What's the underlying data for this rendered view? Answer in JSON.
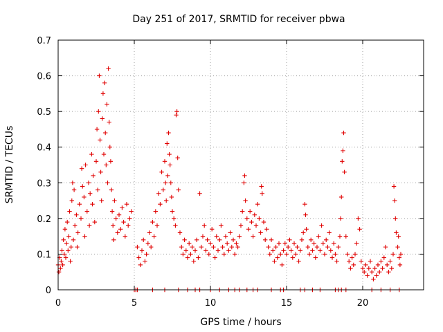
{
  "chart_data": {
    "type": "scatter",
    "title": "Day 251 of 2017, SRMTID for receiver pbwa",
    "xlabel": "GPS time / hours",
    "ylabel": "SRMTID / TECUs",
    "xlim": [
      0,
      24
    ],
    "ylim": [
      0,
      0.7
    ],
    "x_ticks": [
      0,
      5,
      10,
      15,
      20
    ],
    "x_tick_labels": [
      "0",
      "5",
      "10",
      "15",
      "20"
    ],
    "y_ticks": [
      0,
      0.1,
      0.2,
      0.3,
      0.4,
      0.5,
      0.6,
      0.7
    ],
    "y_tick_labels": [
      "0",
      "0.1",
      "0.2",
      "0.3",
      "0.4",
      "0.5",
      "0.6",
      "0.7"
    ],
    "grid": true,
    "marker": "plus",
    "color": "#e00000",
    "series": [
      {
        "name": "SRMTID",
        "points": [
          [
            0.0,
            0.07
          ],
          [
            0.05,
            0.05
          ],
          [
            0.1,
            0.09
          ],
          [
            0.15,
            0.06
          ],
          [
            0.2,
            0.08
          ],
          [
            0.25,
            0.11
          ],
          [
            0.3,
            0.07
          ],
          [
            0.35,
            0.14
          ],
          [
            0.4,
            0.1
          ],
          [
            0.45,
            0.17
          ],
          [
            0.5,
            0.09
          ],
          [
            0.55,
            0.13
          ],
          [
            0.6,
            0.19
          ],
          [
            0.65,
            0.11
          ],
          [
            0.7,
            0.15
          ],
          [
            0.75,
            0.22
          ],
          [
            0.8,
            0.08
          ],
          [
            0.85,
            0.12
          ],
          [
            0.9,
            0.25
          ],
          [
            0.95,
            0.3
          ],
          [
            1.0,
            0.14
          ],
          [
            1.05,
            0.28
          ],
          [
            1.1,
            0.18
          ],
          [
            1.2,
            0.21
          ],
          [
            1.25,
            0.12
          ],
          [
            1.3,
            0.16
          ],
          [
            1.4,
            0.24
          ],
          [
            1.5,
            0.2
          ],
          [
            1.55,
            0.34
          ],
          [
            1.6,
            0.29
          ],
          [
            1.7,
            0.26
          ],
          [
            1.75,
            0.15
          ],
          [
            1.8,
            0.35
          ],
          [
            1.9,
            0.22
          ],
          [
            2.0,
            0.3
          ],
          [
            2.05,
            0.18
          ],
          [
            2.1,
            0.27
          ],
          [
            2.2,
            0.38
          ],
          [
            2.25,
            0.24
          ],
          [
            2.3,
            0.32
          ],
          [
            2.4,
            0.19
          ],
          [
            2.5,
            0.36
          ],
          [
            2.55,
            0.45
          ],
          [
            2.6,
            0.28
          ],
          [
            2.65,
            0.5
          ],
          [
            2.7,
            0.6
          ],
          [
            2.75,
            0.42
          ],
          [
            2.8,
            0.33
          ],
          [
            2.85,
            0.25
          ],
          [
            2.9,
            0.48
          ],
          [
            2.95,
            0.55
          ],
          [
            3.0,
            0.38
          ],
          [
            3.05,
            0.58
          ],
          [
            3.1,
            0.44
          ],
          [
            3.15,
            0.35
          ],
          [
            3.2,
            0.52
          ],
          [
            3.25,
            0.3
          ],
          [
            3.3,
            0.62
          ],
          [
            3.35,
            0.47
          ],
          [
            3.4,
            0.4
          ],
          [
            3.45,
            0.36
          ],
          [
            3.5,
            0.28
          ],
          [
            3.55,
            0.22
          ],
          [
            3.6,
            0.18
          ],
          [
            3.65,
            0.14
          ],
          [
            3.7,
            0.25
          ],
          [
            3.8,
            0.2
          ],
          [
            3.9,
            0.16
          ],
          [
            4.0,
            0.21
          ],
          [
            4.1,
            0.17
          ],
          [
            4.2,
            0.23
          ],
          [
            4.3,
            0.19
          ],
          [
            4.4,
            0.15
          ],
          [
            4.5,
            0.24
          ],
          [
            4.6,
            0.18
          ],
          [
            4.7,
            0.2
          ],
          [
            4.8,
            0.22
          ],
          [
            5.2,
            0.12
          ],
          [
            5.3,
            0.09
          ],
          [
            5.4,
            0.07
          ],
          [
            5.5,
            0.11
          ],
          [
            5.6,
            0.14
          ],
          [
            5.7,
            0.08
          ],
          [
            5.8,
            0.1
          ],
          [
            5.9,
            0.13
          ],
          [
            6.0,
            0.16
          ],
          [
            6.1,
            0.12
          ],
          [
            6.2,
            0.19
          ],
          [
            6.3,
            0.15
          ],
          [
            6.4,
            0.22
          ],
          [
            6.5,
            0.18
          ],
          [
            6.6,
            0.27
          ],
          [
            6.7,
            0.24
          ],
          [
            6.8,
            0.33
          ],
          [
            6.9,
            0.28
          ],
          [
            7.0,
            0.36
          ],
          [
            7.05,
            0.3
          ],
          [
            7.1,
            0.25
          ],
          [
            7.15,
            0.41
          ],
          [
            7.2,
            0.32
          ],
          [
            7.25,
            0.44
          ],
          [
            7.3,
            0.38
          ],
          [
            7.35,
            0.35
          ],
          [
            7.4,
            0.3
          ],
          [
            7.45,
            0.26
          ],
          [
            7.5,
            0.22
          ],
          [
            7.6,
            0.2
          ],
          [
            7.7,
            0.18
          ],
          [
            7.75,
            0.49
          ],
          [
            7.8,
            0.5
          ],
          [
            7.85,
            0.37
          ],
          [
            7.9,
            0.28
          ],
          [
            8.0,
            0.16
          ],
          [
            8.1,
            0.12
          ],
          [
            8.2,
            0.1
          ],
          [
            8.3,
            0.14
          ],
          [
            8.4,
            0.11
          ],
          [
            8.5,
            0.09
          ],
          [
            8.6,
            0.13
          ],
          [
            8.7,
            0.1
          ],
          [
            8.8,
            0.12
          ],
          [
            8.9,
            0.08
          ],
          [
            9.0,
            0.11
          ],
          [
            9.1,
            0.14
          ],
          [
            9.2,
            0.09
          ],
          [
            9.3,
            0.27
          ],
          [
            9.4,
            0.12
          ],
          [
            9.5,
            0.15
          ],
          [
            9.6,
            0.18
          ],
          [
            9.7,
            0.11
          ],
          [
            9.8,
            0.14
          ],
          [
            9.9,
            0.1
          ],
          [
            10.0,
            0.13
          ],
          [
            10.1,
            0.17
          ],
          [
            10.2,
            0.12
          ],
          [
            10.3,
            0.09
          ],
          [
            10.4,
            0.15
          ],
          [
            10.5,
            0.11
          ],
          [
            10.6,
            0.14
          ],
          [
            10.7,
            0.18
          ],
          [
            10.8,
            0.12
          ],
          [
            10.9,
            0.1
          ],
          [
            11.0,
            0.15
          ],
          [
            11.1,
            0.13
          ],
          [
            11.2,
            0.11
          ],
          [
            11.3,
            0.16
          ],
          [
            11.4,
            0.12
          ],
          [
            11.5,
            0.14
          ],
          [
            11.6,
            0.1
          ],
          [
            11.7,
            0.13
          ],
          [
            11.8,
            0.12
          ],
          [
            11.9,
            0.15
          ],
          [
            12.0,
            0.18
          ],
          [
            12.1,
            0.22
          ],
          [
            12.2,
            0.3
          ],
          [
            12.25,
            0.32
          ],
          [
            12.3,
            0.25
          ],
          [
            12.4,
            0.2
          ],
          [
            12.5,
            0.17
          ],
          [
            12.6,
            0.22
          ],
          [
            12.7,
            0.19
          ],
          [
            12.8,
            0.15
          ],
          [
            12.9,
            0.21
          ],
          [
            13.0,
            0.18
          ],
          [
            13.1,
            0.24
          ],
          [
            13.2,
            0.2
          ],
          [
            13.3,
            0.16
          ],
          [
            13.35,
            0.29
          ],
          [
            13.4,
            0.27
          ],
          [
            13.5,
            0.19
          ],
          [
            13.6,
            0.14
          ],
          [
            13.7,
            0.17
          ],
          [
            13.8,
            0.12
          ],
          [
            13.9,
            0.1
          ],
          [
            14.0,
            0.14
          ],
          [
            14.1,
            0.11
          ],
          [
            14.2,
            0.08
          ],
          [
            14.3,
            0.12
          ],
          [
            14.4,
            0.09
          ],
          [
            14.5,
            0.13
          ],
          [
            14.6,
            0.1
          ],
          [
            14.7,
            0.07
          ],
          [
            14.8,
            0.11
          ],
          [
            14.9,
            0.13
          ],
          [
            15.0,
            0.1
          ],
          [
            15.1,
            0.12
          ],
          [
            15.2,
            0.14
          ],
          [
            15.3,
            0.11
          ],
          [
            15.4,
            0.09
          ],
          [
            15.5,
            0.13
          ],
          [
            15.6,
            0.1
          ],
          [
            15.7,
            0.12
          ],
          [
            15.8,
            0.08
          ],
          [
            15.9,
            0.11
          ],
          [
            16.0,
            0.14
          ],
          [
            16.1,
            0.16
          ],
          [
            16.2,
            0.24
          ],
          [
            16.25,
            0.21
          ],
          [
            16.3,
            0.17
          ],
          [
            16.4,
            0.12
          ],
          [
            16.5,
            0.1
          ],
          [
            16.6,
            0.14
          ],
          [
            16.7,
            0.11
          ],
          [
            16.8,
            0.13
          ],
          [
            16.9,
            0.09
          ],
          [
            17.0,
            0.12
          ],
          [
            17.1,
            0.15
          ],
          [
            17.2,
            0.11
          ],
          [
            17.3,
            0.18
          ],
          [
            17.4,
            0.13
          ],
          [
            17.5,
            0.1
          ],
          [
            17.6,
            0.14
          ],
          [
            17.7,
            0.12
          ],
          [
            17.8,
            0.16
          ],
          [
            17.9,
            0.11
          ],
          [
            18.0,
            0.09
          ],
          [
            18.1,
            0.13
          ],
          [
            18.2,
            0.1
          ],
          [
            18.3,
            0.08
          ],
          [
            18.4,
            0.12
          ],
          [
            18.5,
            0.15
          ],
          [
            18.55,
            0.2
          ],
          [
            18.6,
            0.26
          ],
          [
            18.65,
            0.36
          ],
          [
            18.7,
            0.39
          ],
          [
            18.75,
            0.44
          ],
          [
            18.8,
            0.33
          ],
          [
            18.9,
            0.15
          ],
          [
            19.0,
            0.1
          ],
          [
            19.1,
            0.08
          ],
          [
            19.2,
            0.06
          ],
          [
            19.3,
            0.09
          ],
          [
            19.4,
            0.07
          ],
          [
            19.5,
            0.1
          ],
          [
            19.6,
            0.13
          ],
          [
            19.7,
            0.2
          ],
          [
            19.8,
            0.17
          ],
          [
            19.9,
            0.08
          ],
          [
            20.0,
            0.06
          ],
          [
            20.1,
            0.05
          ],
          [
            20.2,
            0.07
          ],
          [
            20.3,
            0.04
          ],
          [
            20.4,
            0.06
          ],
          [
            20.5,
            0.08
          ],
          [
            20.6,
            0.05
          ],
          [
            20.7,
            0.03
          ],
          [
            20.8,
            0.06
          ],
          [
            20.9,
            0.04
          ],
          [
            21.0,
            0.07
          ],
          [
            21.1,
            0.05
          ],
          [
            21.2,
            0.08
          ],
          [
            21.3,
            0.06
          ],
          [
            21.4,
            0.09
          ],
          [
            21.5,
            0.12
          ],
          [
            21.6,
            0.07
          ],
          [
            21.7,
            0.05
          ],
          [
            21.8,
            0.08
          ],
          [
            21.9,
            0.06
          ],
          [
            22.0,
            0.1
          ],
          [
            22.05,
            0.29
          ],
          [
            22.1,
            0.25
          ],
          [
            22.15,
            0.2
          ],
          [
            22.2,
            0.16
          ],
          [
            22.3,
            0.12
          ],
          [
            22.35,
            0.15
          ],
          [
            22.4,
            0.09
          ],
          [
            22.45,
            0.07
          ],
          [
            22.5,
            0.1
          ]
        ]
      },
      {
        "name": "baseline markers",
        "points": [
          [
            5.0,
            0
          ],
          [
            5.1,
            0
          ],
          [
            5.2,
            0
          ],
          [
            6.2,
            0
          ],
          [
            7.0,
            0
          ],
          [
            7.9,
            0
          ],
          [
            8.5,
            0
          ],
          [
            9.0,
            0
          ],
          [
            9.3,
            0
          ],
          [
            10.0,
            0
          ],
          [
            10.6,
            0
          ],
          [
            11.2,
            0
          ],
          [
            11.6,
            0
          ],
          [
            11.9,
            0
          ],
          [
            12.4,
            0
          ],
          [
            12.8,
            0
          ],
          [
            13.1,
            0
          ],
          [
            14.0,
            0
          ],
          [
            14.6,
            0
          ],
          [
            14.8,
            0
          ],
          [
            15.9,
            0
          ],
          [
            16.2,
            0
          ],
          [
            16.7,
            0
          ],
          [
            17.2,
            0
          ],
          [
            18.2,
            0
          ],
          [
            18.4,
            0
          ],
          [
            18.6,
            0
          ],
          [
            18.9,
            0
          ],
          [
            20.6,
            0
          ],
          [
            21.2,
            0
          ],
          [
            21.8,
            0
          ],
          [
            22.4,
            0
          ]
        ]
      }
    ]
  }
}
